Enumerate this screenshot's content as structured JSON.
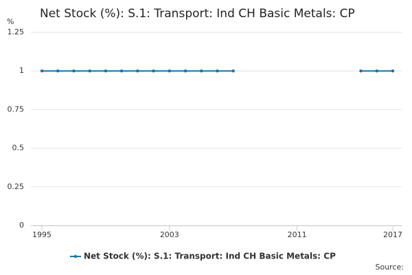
{
  "chart_data": {
    "type": "line",
    "title": "Net Stock (%): S.1: Transport: Ind CH Basic Metals: CP",
    "y_label": "%",
    "source": "Source:",
    "x": [
      1995,
      1996,
      1997,
      1998,
      1999,
      2000,
      2001,
      2002,
      2003,
      2004,
      2005,
      2006,
      2007,
      2008,
      2009,
      2010,
      2011,
      2012,
      2013,
      2014,
      2015,
      2016,
      2017
    ],
    "series": [
      {
        "name": "Net Stock (%): S.1: Transport: Ind CH Basic Metals: CP",
        "color": "#0f75b0",
        "values": [
          1,
          1,
          1,
          1,
          1,
          1,
          1,
          1,
          1,
          1,
          1,
          1,
          1,
          null,
          null,
          null,
          null,
          null,
          null,
          null,
          1,
          1,
          1
        ]
      }
    ],
    "xlim": [
      1995,
      2017
    ],
    "xticks": [
      1995,
      2003,
      2011,
      2017
    ],
    "ylim": [
      0,
      1.25
    ],
    "yticks": [
      0,
      0.25,
      0.5,
      0.75,
      1,
      1.25
    ],
    "grid": true
  }
}
